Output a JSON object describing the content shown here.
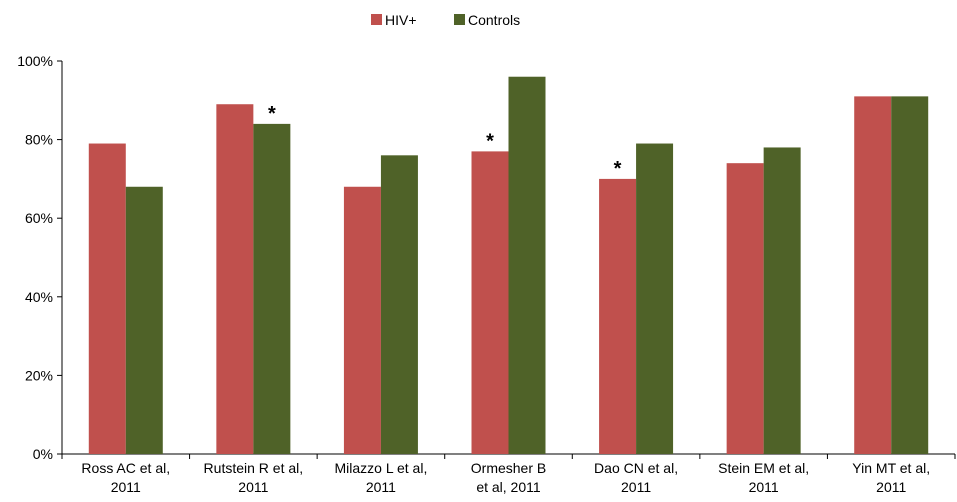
{
  "chart_data": {
    "type": "bar",
    "title": "",
    "xlabel": "",
    "ylabel": "",
    "categories": [
      [
        "Ross AC et al,",
        "2011"
      ],
      [
        "Rutstein R et al,",
        "2011"
      ],
      [
        "Milazzo L et al,",
        "2011"
      ],
      [
        "Ormesher B",
        "et al, 2011"
      ],
      [
        "Dao CN et al,",
        "2011"
      ],
      [
        "Stein EM et al,",
        "2011"
      ],
      [
        "Yin MT et al,",
        "2011"
      ]
    ],
    "series": [
      {
        "name": "HIV+",
        "color": "#c0504d",
        "values": [
          79,
          89,
          68,
          77,
          70,
          74,
          91
        ]
      },
      {
        "name": "Controls",
        "color": "#4f6228",
        "values": [
          68,
          84,
          76,
          96,
          79,
          78,
          91
        ]
      }
    ],
    "ylim": [
      0,
      100
    ],
    "yticks": [
      0,
      20,
      40,
      60,
      80,
      100
    ],
    "ytick_labels": [
      "0%",
      "20%",
      "40%",
      "60%",
      "80%",
      "100%"
    ],
    "annotations": [
      {
        "text": "*",
        "category_index": 1,
        "series_index": 1
      },
      {
        "text": "*",
        "category_index": 3,
        "series_index": 0
      },
      {
        "text": "*",
        "category_index": 4,
        "series_index": 0
      }
    ],
    "legend": "top-center",
    "grid": false
  }
}
